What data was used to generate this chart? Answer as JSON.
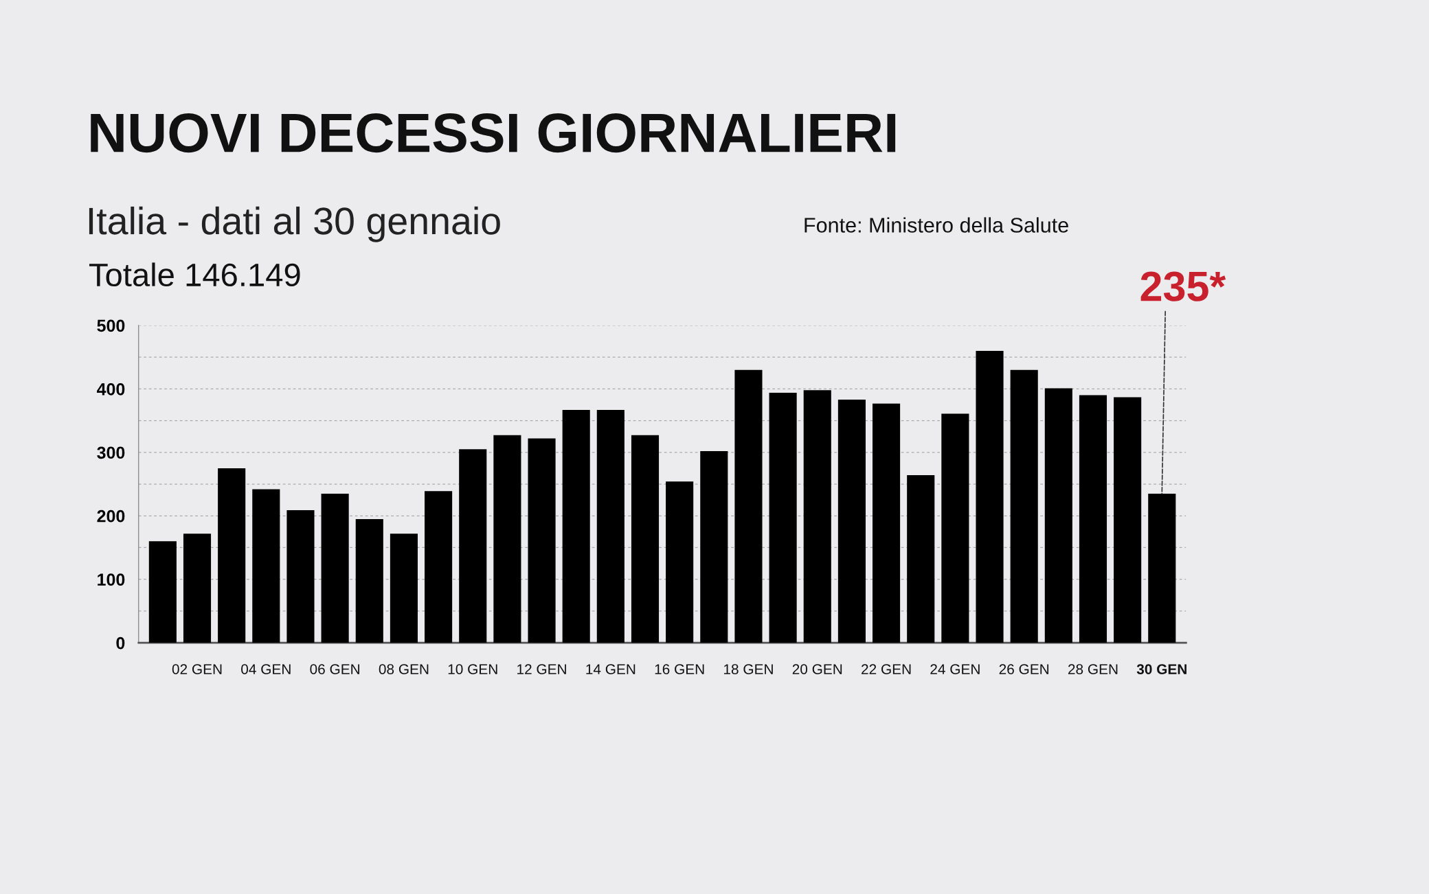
{
  "chart_data": {
    "type": "bar",
    "title": "NUOVI DECESSI GIORNALIERI",
    "subtitle": "Italia - dati al 30 gennaio",
    "categories": [
      null,
      "02 GEN",
      null,
      "04 GEN",
      null,
      "06 GEN",
      null,
      "08 GEN",
      null,
      "10 GEN",
      null,
      "12 GEN",
      null,
      "14 GEN",
      null,
      "16 GEN",
      null,
      "18 GEN",
      null,
      "20 GEN",
      null,
      "22 GEN",
      null,
      "24 GEN",
      null,
      "26 GEN",
      null,
      "28 GEN",
      null,
      "30 GEN"
    ],
    "values": [
      160,
      172,
      275,
      242,
      209,
      235,
      195,
      172,
      239,
      305,
      327,
      322,
      367,
      367,
      327,
      254,
      302,
      430,
      394,
      398,
      383,
      377,
      264,
      361,
      460,
      430,
      401,
      390,
      387,
      235
    ],
    "color": "#000000",
    "ylim": [
      0,
      500
    ],
    "yticks": [
      0,
      {
        "value": 50,
        "label": null
      },
      100,
      {
        "value": 150,
        "label": null
      },
      200,
      {
        "value": 250,
        "label": null
      },
      300,
      {
        "value": 350,
        "label": null
      },
      400,
      {
        "value": 450,
        "label": null
      },
      500
    ],
    "grid": "y",
    "annotations": [
      "Totale 146.149",
      "Fonte: Ministero della Salute",
      {
        "text": "235*",
        "x": "30 GEN",
        "y": 235
      }
    ]
  }
}
